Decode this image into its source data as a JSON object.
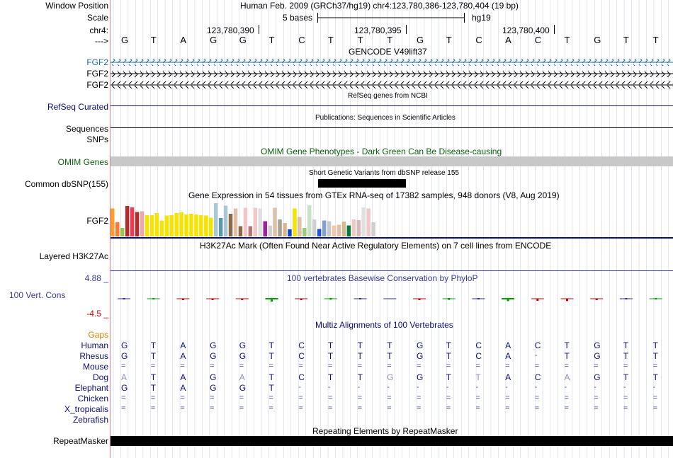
{
  "colors": {
    "gencode": "#1f6ea0",
    "refseq": "#0c0c78",
    "omim": "#0b5f0b",
    "phylop": "#3a3a9a",
    "multiz_title": "#0c0c78",
    "species": "#0c0c78",
    "gaps": "#d08600",
    "guide": "#cfd6e6",
    "conservation_red": "#cc0000",
    "conservation_blue": "#2a2aa8",
    "conservation_green": "#00a000"
  },
  "ruler": {
    "window_label": "Window Position",
    "window_text": "Human Feb. 2009 (GRCh37/hg19)   chr4:123,780,386-123,780,404 (19 bp)",
    "scale_label": "Scale",
    "scale_text": "5 bases",
    "assembly": "hg19",
    "chrom_label": "chr4:",
    "positions": [
      "123,780,390",
      "123,780,395",
      "123,780,400"
    ],
    "strand_label": "--->",
    "bases": [
      "G",
      "T",
      "A",
      "G",
      "G",
      "T",
      "C",
      "T",
      "T",
      "T",
      "G",
      "T",
      "C",
      "A",
      "C",
      "T",
      "G",
      "T",
      "T"
    ]
  },
  "tracks": {
    "gencode": {
      "title": "GENCODE V49lift37",
      "items": [
        "FGF2",
        "FGF2",
        "FGF2"
      ]
    },
    "refseq": {
      "title": "RefSeq genes from NCBI",
      "label": "RefSeq Curated"
    },
    "publications": {
      "title": "Publications: Sequences in Scientific Articles",
      "label1": "Sequences",
      "label2": "SNPs"
    },
    "omim": {
      "title": "OMIM Gene Phenotypes - Dark Green Can Be Disease-causing",
      "label": "OMIM Genes"
    },
    "dbsnp": {
      "title": "Short Genetic Variants from dbSNP release 155",
      "label": "Common dbSNP(155)"
    },
    "gtex": {
      "title": "Gene Expression in 54 tissues from GTEx RNA-seq of 17382 samples, 948 donors (V8, Aug 2019)",
      "label": "FGF2",
      "values": [
        0.79,
        0.4,
        0.24,
        0.86,
        0.82,
        0.69,
        0.71,
        0.6,
        0.6,
        0.66,
        0.45,
        0.59,
        0.6,
        0.66,
        0.69,
        0.62,
        0.64,
        0.62,
        0.6,
        0.59,
        0.53,
        0.94,
        0.52,
        0.87,
        0.64,
        0.79,
        0.29,
        0.81,
        0.29,
        0.81,
        0.79,
        0.43,
        0.31,
        0.81,
        0.48,
        0.38,
        0.2,
        0.79,
        0.55,
        0.24,
        0.88,
        0.48,
        0.21,
        0.45,
        0.43,
        0.31,
        0.33,
        0.42,
        0.31,
        0.48,
        0.46,
        0.82,
        0.79,
        0.4
      ],
      "colors": [
        "#ff9b2f",
        "#ff7a2f",
        "#9cc54f",
        "#b42b2b",
        "#f03a4f",
        "#b42b2b",
        "#e8a8b0",
        "#f5e300",
        "#f5e300",
        "#f5e300",
        "#f5e300",
        "#f5e300",
        "#f5e300",
        "#f5e300",
        "#f5e300",
        "#f5e300",
        "#f5e300",
        "#f5e300",
        "#f5e300",
        "#f5e300",
        "#f5e300",
        "#a8c8d8",
        "#5a9aa8",
        "#a8c8d8",
        "#8a6a4a",
        "#dfc0a8",
        "#8a6a4a",
        "#f0c8c8",
        "#b47a7a",
        "#f0c8c8",
        "#e0e0e0",
        "#a020a0",
        "#d0d0d0",
        "#dfc0a8",
        "#a8a090",
        "#d8b890",
        "#0a4ac8",
        "#f5e300",
        "#dfc0a8",
        "#9acf7a",
        "#c8e0c8",
        "#d0d0d0",
        "#2050e0",
        "#80a0d0",
        "#c8c8c8",
        "#f0c8a8",
        "#dfc0a8",
        "#d8b890",
        "#007a3a",
        "#f0c8c8",
        "#d8b8b8",
        "#e0e0e0",
        "#f0c8c8",
        "#d0d0d0"
      ]
    },
    "h3k27ac": {
      "title": "H3K27Ac Mark (Often Found Near Active Regulatory Elements) on 7 cell lines from ENCODE",
      "label": "Layered H3K27Ac"
    },
    "phylop": {
      "title": "100 vertebrates Basewise Conservation by PhyloP",
      "label": "100 Vert. Cons",
      "max": "4.88 _",
      "min": "-4.5 _",
      "values": [
        0.1,
        0.6,
        -0.2,
        -0.1,
        -0.1,
        1.7,
        -0.1,
        0.8,
        0.4,
        0,
        -0.1,
        0.9,
        0.1,
        1.5,
        -1.0,
        -1.1,
        -0.2,
        0.3,
        0.6
      ]
    },
    "multiz": {
      "title": "Multiz Alignments of 100 Vertebrates",
      "gaps_label": "Gaps",
      "species": [
        {
          "name": "Human",
          "bases": [
            "G",
            "T",
            "A",
            "G",
            "G",
            "T",
            "C",
            "T",
            "T",
            "T",
            "G",
            "T",
            "C",
            "A",
            "C",
            "T",
            "G",
            "T",
            "T"
          ]
        },
        {
          "name": "Rhesus",
          "bases": [
            "G",
            "T",
            "A",
            "G",
            "G",
            "T",
            "C",
            "T",
            "T",
            "T",
            "G",
            "T",
            "C",
            "A",
            "-",
            "T",
            "G",
            "T",
            "T"
          ]
        },
        {
          "name": "Mouse",
          "bases": [
            "=",
            "=",
            "=",
            "=",
            "=",
            "=",
            "=",
            "=",
            "=",
            "=",
            "=",
            "=",
            "=",
            "=",
            "=",
            "=",
            "=",
            "=",
            "="
          ]
        },
        {
          "name": "Dog",
          "bases": [
            "A",
            "T",
            "A",
            "G",
            "A",
            "T",
            "C",
            "T",
            "T",
            "G",
            "G",
            "T",
            "T",
            "A",
            "C",
            "A",
            "G",
            "T",
            "T"
          ]
        },
        {
          "name": "Elephant",
          "bases": [
            "G",
            "T",
            "A",
            "G",
            "G",
            "T",
            "-",
            "-",
            "-",
            "-",
            "-",
            "-",
            "-",
            "-",
            "-",
            "-",
            "-",
            "-",
            "-"
          ]
        },
        {
          "name": "Chicken",
          "bases": [
            "=",
            "=",
            "=",
            "=",
            "=",
            "=",
            "=",
            "=",
            "=",
            "=",
            "=",
            "=",
            "=",
            "=",
            "=",
            "=",
            "=",
            "=",
            "="
          ]
        },
        {
          "name": "X_tropicalis",
          "bases": [
            "=",
            "=",
            "=",
            "=",
            "=",
            "=",
            "=",
            "=",
            "=",
            "=",
            "=",
            "=",
            "=",
            "=",
            "=",
            "=",
            "=",
            "=",
            "="
          ]
        },
        {
          "name": "Zebrafish",
          "bases": []
        }
      ]
    },
    "repeatmasker": {
      "title": "Repeating Elements by RepeatMasker",
      "label": "RepeatMasker"
    }
  }
}
